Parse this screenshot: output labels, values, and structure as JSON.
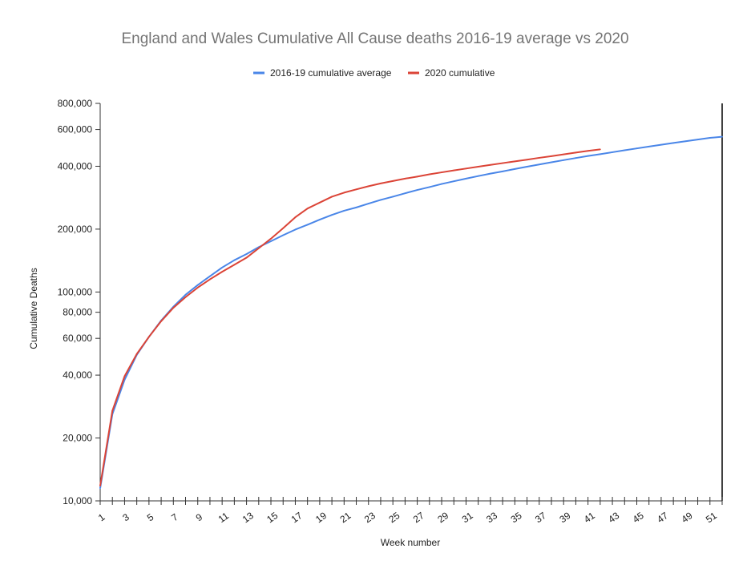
{
  "chart_data": {
    "type": "line",
    "title": "England and Wales Cumulative All Cause deaths 2016-19 average vs 2020",
    "xlabel": "Week number",
    "ylabel": "Cumulative Deaths",
    "y_scale": "log",
    "ylim": [
      10000,
      800000
    ],
    "xlim": [
      1,
      52
    ],
    "y_ticks": [
      10000,
      20000,
      40000,
      60000,
      80000,
      100000,
      200000,
      400000,
      600000,
      800000
    ],
    "y_tick_labels": [
      "10,000",
      "20,000",
      "40,000",
      "60,000",
      "80,000",
      "100,000",
      "200,000",
      "400,000",
      "600,000",
      "800,000"
    ],
    "x_tick_labels": [
      "1",
      "3",
      "5",
      "7",
      "9",
      "11",
      "13",
      "15",
      "17",
      "19",
      "21",
      "23",
      "25",
      "27",
      "29",
      "31",
      "33",
      "35",
      "37",
      "39",
      "41",
      "43",
      "45",
      "47",
      "49",
      "51"
    ],
    "legend_position": "top",
    "series": [
      {
        "name": "2016-19 cumulative average",
        "color": "#4a86e8",
        "x": [
          1,
          2,
          3,
          4,
          5,
          6,
          7,
          8,
          9,
          10,
          11,
          12,
          13,
          14,
          15,
          16,
          17,
          18,
          19,
          20,
          21,
          22,
          23,
          24,
          25,
          26,
          27,
          28,
          29,
          30,
          31,
          32,
          33,
          34,
          35,
          36,
          37,
          38,
          39,
          40,
          41,
          42,
          43,
          44,
          45,
          46,
          47,
          48,
          49,
          50,
          51,
          52
        ],
        "values": [
          11500,
          26000,
          38000,
          50000,
          61000,
          73000,
          85000,
          97000,
          108000,
          119000,
          131000,
          142000,
          152000,
          164000,
          175000,
          187000,
          199000,
          210000,
          222000,
          234000,
          245000,
          254000,
          265000,
          276000,
          286000,
          297000,
          308000,
          318000,
          329000,
          339000,
          349000,
          359000,
          369000,
          378000,
          388000,
          398000,
          408000,
          418000,
          428000,
          438000,
          448000,
          457000,
          467000,
          477000,
          487000,
          497000,
          507000,
          517000,
          527000,
          537000,
          547000,
          554000
        ]
      },
      {
        "name": "2020 cumulative",
        "color": "#db4437",
        "x": [
          1,
          2,
          3,
          4,
          5,
          6,
          7,
          8,
          9,
          10,
          11,
          12,
          13,
          14,
          15,
          16,
          17,
          18,
          19,
          20,
          21,
          22,
          23,
          24,
          25,
          26,
          27,
          28,
          29,
          30,
          31,
          32,
          33,
          34,
          35,
          36,
          37,
          38,
          39,
          40,
          41,
          42
        ],
        "values": [
          11800,
          27000,
          39500,
          50500,
          61000,
          72500,
          84000,
          94500,
          105000,
          115000,
          125000,
          135000,
          146000,
          162000,
          180000,
          202000,
          228000,
          251000,
          268000,
          286000,
          299000,
          310000,
          321000,
          331000,
          340000,
          349000,
          357000,
          366000,
          374000,
          382000,
          390000,
          398000,
          406000,
          414000,
          422000,
          430000,
          439000,
          447000,
          456000,
          465000,
          474000,
          482000
        ]
      }
    ]
  }
}
